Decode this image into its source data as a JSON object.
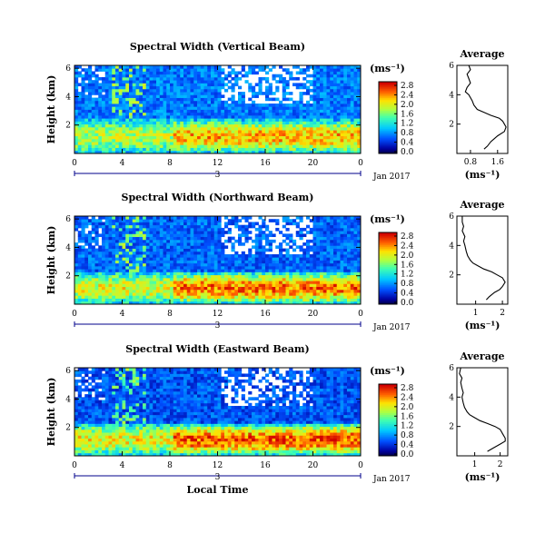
{
  "chart_data": [
    {
      "type": "heatmap",
      "title": "Spectral Width (Vertical Beam)",
      "ylabel": "Height (km)",
      "yticks": [
        "2",
        "4",
        "6"
      ],
      "xticks": [
        "0",
        "4",
        "8",
        "12",
        "16",
        "20",
        "0"
      ],
      "date_label": "3",
      "month_label": "Jan 2017",
      "colorbar": {
        "unit": "(ms⁻¹)",
        "ticks": [
          "0.0",
          "0.4",
          "0.8",
          "1.2",
          "1.6",
          "2.0",
          "2.4",
          "2.8"
        ]
      },
      "pattern": {
        "layer_top_km": 2.4,
        "layer_peak": 2.2,
        "upper_value": 0.5,
        "gaps": "white patches above 4 km after 12 LT"
      },
      "average": {
        "title": "Average",
        "xlabel": "(ms⁻¹)",
        "xticks": [
          "0.8",
          "1.6"
        ],
        "xlim": [
          0.4,
          1.9
        ],
        "yticks": [
          "2",
          "4",
          "6"
        ],
        "ylim": [
          0,
          6
        ],
        "heights_km": [
          0.3,
          0.5,
          0.8,
          1.0,
          1.2,
          1.5,
          1.8,
          2.0,
          2.2,
          2.4,
          2.6,
          2.8,
          3.0,
          3.3,
          3.6,
          4.0,
          4.2,
          4.5,
          4.8,
          5.1,
          5.4,
          5.7,
          6.0
        ],
        "values": [
          1.2,
          1.3,
          1.4,
          1.5,
          1.6,
          1.8,
          1.85,
          1.8,
          1.75,
          1.65,
          1.4,
          1.2,
          1.0,
          0.9,
          0.85,
          0.75,
          0.65,
          0.7,
          0.8,
          0.75,
          0.7,
          0.8,
          0.75
        ]
      }
    },
    {
      "type": "heatmap",
      "title": "Spectral Width (Northward Beam)",
      "ylabel": "Height (km)",
      "yticks": [
        "2",
        "4",
        "6"
      ],
      "xticks": [
        "0",
        "4",
        "8",
        "12",
        "16",
        "20",
        "0"
      ],
      "date_label": "3",
      "month_label": "Jan 2017",
      "colorbar": {
        "unit": "(ms⁻¹)",
        "ticks": [
          "0.0",
          "0.4",
          "0.8",
          "1.2",
          "1.6",
          "2.0",
          "2.4",
          "2.8"
        ]
      },
      "pattern": {
        "layer_top_km": 2.3,
        "layer_peak": 2.4,
        "upper_value": 0.45,
        "gaps": "white patches above 3.5 km"
      },
      "average": {
        "title": "Average",
        "xlabel": "(ms⁻¹)",
        "xticks": [
          "1",
          "2"
        ],
        "xlim": [
          0.3,
          2.2
        ],
        "yticks": [
          "2",
          "4",
          "6"
        ],
        "ylim": [
          0,
          6
        ],
        "heights_km": [
          0.3,
          0.5,
          0.8,
          1.0,
          1.2,
          1.5,
          1.8,
          2.0,
          2.2,
          2.4,
          2.6,
          2.8,
          3.0,
          3.3,
          3.6,
          4.0,
          4.3,
          4.6,
          5.0,
          5.3,
          5.6,
          6.0
        ],
        "values": [
          1.4,
          1.5,
          1.7,
          1.9,
          2.0,
          2.1,
          2.0,
          1.8,
          1.6,
          1.3,
          1.1,
          0.9,
          0.8,
          0.7,
          0.65,
          0.6,
          0.55,
          0.6,
          0.5,
          0.55,
          0.5,
          0.5
        ]
      }
    },
    {
      "type": "heatmap",
      "title": "Spectral Width (Eastward Beam)",
      "ylabel": "Height (km)",
      "yticks": [
        "2",
        "4",
        "6"
      ],
      "xticks": [
        "0",
        "4",
        "8",
        "12",
        "16",
        "20",
        "0"
      ],
      "date_label": "3",
      "month_label": "Jan 2017",
      "xlabel": "Local Time",
      "colorbar": {
        "unit": "(ms⁻¹)",
        "ticks": [
          "0.0",
          "0.4",
          "0.8",
          "1.2",
          "1.6",
          "2.0",
          "2.4",
          "2.8"
        ]
      },
      "pattern": {
        "layer_top_km": 2.3,
        "layer_peak": 2.5,
        "upper_value": 0.4,
        "gaps": "white patches above 3.5 km"
      },
      "average": {
        "title": "Average",
        "xlabel": "(ms⁻¹)",
        "xticks": [
          "1",
          "2"
        ],
        "xlim": [
          0.3,
          2.3
        ],
        "yticks": [
          "2",
          "4",
          "6"
        ],
        "ylim": [
          0,
          6
        ],
        "heights_km": [
          0.3,
          0.5,
          0.8,
          1.0,
          1.2,
          1.5,
          1.8,
          2.0,
          2.2,
          2.4,
          2.6,
          2.8,
          3.0,
          3.3,
          3.6,
          4.0,
          4.3,
          4.6,
          5.0,
          5.3,
          5.6,
          6.0
        ],
        "values": [
          1.5,
          1.7,
          2.0,
          2.2,
          2.2,
          2.1,
          2.0,
          1.8,
          1.5,
          1.2,
          1.0,
          0.8,
          0.7,
          0.6,
          0.55,
          0.5,
          0.55,
          0.5,
          0.45,
          0.5,
          0.4,
          0.45
        ]
      }
    }
  ]
}
